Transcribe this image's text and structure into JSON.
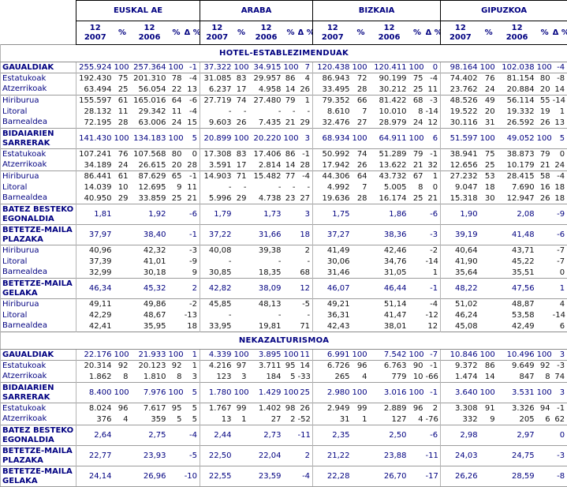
{
  "table": {
    "groups": [
      "EUSKAL AE",
      "ARABA",
      "BIZKAIA",
      "GIPUZKOA"
    ],
    "subheaders": [
      [
        "12",
        "2007"
      ],
      [
        "%"
      ],
      [
        "12",
        "2006"
      ],
      [
        "%"
      ],
      [
        "Δ %"
      ]
    ],
    "colors": {
      "heading_text": "#000080",
      "total_row_text": "#000080",
      "sub_row_text": "#111111",
      "header_border": "#000000",
      "block_line": "#9c9c9c",
      "group_line": "#b5b5b5"
    }
  },
  "sections": [
    {
      "title": "HOTEL-ESTABLEZIMENDUAK",
      "rows": [
        {
          "label": "GAUALDIAK",
          "style": "total",
          "tall": false,
          "block": false,
          "cells": [
            "255.924",
            "100",
            "257.364",
            "100",
            "-1",
            "37.322",
            "100",
            "34.915",
            "100",
            "7",
            "120.438",
            "100",
            "120.411",
            "100",
            "0",
            "98.164",
            "100",
            "102.038",
            "100",
            "-4"
          ]
        },
        {
          "label": "Estatukoak",
          "style": "sub",
          "tall": false,
          "block": true,
          "cells": [
            "192.430",
            "75",
            "201.310",
            "78",
            "-4",
            "31.085",
            "83",
            "29.957",
            "86",
            "4",
            "86.943",
            "72",
            "90.199",
            "75",
            "-4",
            "74.402",
            "76",
            "81.154",
            "80",
            "-8"
          ]
        },
        {
          "label": "Atzerrikoak",
          "style": "sub",
          "tall": false,
          "block": false,
          "cells": [
            "63.494",
            "25",
            "56.054",
            "22",
            "13",
            "6.237",
            "17",
            "4.958",
            "14",
            "26",
            "33.495",
            "28",
            "30.212",
            "25",
            "11",
            "23.762",
            "24",
            "20.884",
            "20",
            "14"
          ]
        },
        {
          "label": "Hiriburua",
          "style": "sub",
          "tall": false,
          "block": true,
          "cells": [
            "155.597",
            "61",
            "165.016",
            "64",
            "-6",
            "27.719",
            "74",
            "27.480",
            "79",
            "1",
            "79.352",
            "66",
            "81.422",
            "68",
            "-3",
            "48.526",
            "49",
            "56.114",
            "55",
            "-14"
          ]
        },
        {
          "label": "Litoral",
          "style": "sub",
          "tall": false,
          "block": false,
          "cells": [
            "28.132",
            "11",
            "29.342",
            "11",
            "-4",
            "-",
            "-",
            "-",
            "-",
            "-",
            "8.610",
            "7",
            "10.010",
            "8",
            "-14",
            "19.522",
            "20",
            "19.332",
            "19",
            "1"
          ]
        },
        {
          "label": "Barnealdea",
          "style": "sub",
          "tall": false,
          "block": false,
          "cells": [
            "72.195",
            "28",
            "63.006",
            "24",
            "15",
            "9.603",
            "26",
            "7.435",
            "21",
            "29",
            "32.476",
            "27",
            "28.979",
            "24",
            "12",
            "30.116",
            "31",
            "26.592",
            "26",
            "13"
          ]
        },
        {
          "label": "BIDAIARIEN\nSARRERAK",
          "style": "total",
          "tall": true,
          "block": true,
          "cells": [
            "141.430",
            "100",
            "134.183",
            "100",
            "5",
            "20.899",
            "100",
            "20.220",
            "100",
            "3",
            "68.934",
            "100",
            "64.911",
            "100",
            "6",
            "51.597",
            "100",
            "49.052",
            "100",
            "5"
          ]
        },
        {
          "label": "Estatukoak",
          "style": "sub",
          "tall": false,
          "block": true,
          "cells": [
            "107.241",
            "76",
            "107.568",
            "80",
            "0",
            "17.308",
            "83",
            "17.406",
            "86",
            "-1",
            "50.992",
            "74",
            "51.289",
            "79",
            "-1",
            "38.941",
            "75",
            "38.873",
            "79",
            "0"
          ]
        },
        {
          "label": "Atzerrikoak",
          "style": "sub",
          "tall": false,
          "block": false,
          "cells": [
            "34.189",
            "24",
            "26.615",
            "20",
            "28",
            "3.591",
            "17",
            "2.814",
            "14",
            "28",
            "17.942",
            "26",
            "13.622",
            "21",
            "32",
            "12.656",
            "25",
            "10.179",
            "21",
            "24"
          ]
        },
        {
          "label": "Hiriburua",
          "style": "sub",
          "tall": false,
          "block": true,
          "cells": [
            "86.441",
            "61",
            "87.629",
            "65",
            "-1",
            "14.903",
            "71",
            "15.482",
            "77",
            "-4",
            "44.306",
            "64",
            "43.732",
            "67",
            "1",
            "27.232",
            "53",
            "28.415",
            "58",
            "-4"
          ]
        },
        {
          "label": "Litoral",
          "style": "sub",
          "tall": false,
          "block": false,
          "cells": [
            "14.039",
            "10",
            "12.695",
            "9",
            "11",
            "-",
            "-",
            "-",
            "-",
            "-",
            "4.992",
            "7",
            "5.005",
            "8",
            "0",
            "9.047",
            "18",
            "7.690",
            "16",
            "18"
          ]
        },
        {
          "label": "Barnealdea",
          "style": "sub",
          "tall": false,
          "block": false,
          "cells": [
            "40.950",
            "29",
            "33.859",
            "25",
            "21",
            "5.996",
            "29",
            "4.738",
            "23",
            "27",
            "19.636",
            "28",
            "16.174",
            "25",
            "21",
            "15.318",
            "30",
            "12.947",
            "26",
            "18"
          ]
        },
        {
          "label": "BATEZ BESTEKO\nEGONALDIA",
          "style": "total",
          "tall": true,
          "block": true,
          "cells": [
            "1,81",
            "",
            "1,92",
            "",
            "-6",
            "1,79",
            "",
            "1,73",
            "",
            "3",
            "1,75",
            "",
            "1,86",
            "",
            "-6",
            "1,90",
            "",
            "2,08",
            "",
            "-9"
          ]
        },
        {
          "label": "BETETZE-MAILA\nPLAZAKA",
          "style": "total",
          "tall": true,
          "block": true,
          "cells": [
            "37,97",
            "",
            "38,40",
            "",
            "-1",
            "37,22",
            "",
            "31,66",
            "",
            "18",
            "37,27",
            "",
            "38,36",
            "",
            "-3",
            "39,19",
            "",
            "41,48",
            "",
            "-6"
          ]
        },
        {
          "label": "Hiriburua",
          "style": "sub",
          "tall": false,
          "block": true,
          "cells": [
            "40,96",
            "",
            "42,32",
            "",
            "-3",
            "40,08",
            "",
            "39,38",
            "",
            "2",
            "41,49",
            "",
            "42,46",
            "",
            "-2",
            "40,64",
            "",
            "43,71",
            "",
            "-7"
          ]
        },
        {
          "label": "Litoral",
          "style": "sub",
          "tall": false,
          "block": false,
          "cells": [
            "37,39",
            "",
            "41,01",
            "",
            "-9",
            "-",
            "",
            "-",
            "",
            "-",
            "30,06",
            "",
            "34,76",
            "",
            "-14",
            "41,90",
            "",
            "45,22",
            "",
            "-7"
          ]
        },
        {
          "label": "Barnealdea",
          "style": "sub",
          "tall": false,
          "block": false,
          "cells": [
            "32,99",
            "",
            "30,18",
            "",
            "9",
            "30,85",
            "",
            "18,35",
            "",
            "68",
            "31,46",
            "",
            "31,05",
            "",
            "1",
            "35,64",
            "",
            "35,51",
            "",
            "0"
          ]
        },
        {
          "label": "BETETZE-MAILA\nGELAKA",
          "style": "total",
          "tall": true,
          "block": true,
          "cells": [
            "46,34",
            "",
            "45,32",
            "",
            "2",
            "42,82",
            "",
            "38,09",
            "",
            "12",
            "46,07",
            "",
            "46,44",
            "",
            "-1",
            "48,22",
            "",
            "47,56",
            "",
            "1"
          ]
        },
        {
          "label": "Hiriburua",
          "style": "sub",
          "tall": false,
          "block": true,
          "cells": [
            "49,11",
            "",
            "49,86",
            "",
            "-2",
            "45,85",
            "",
            "48,13",
            "",
            "-5",
            "49,21",
            "",
            "51,14",
            "",
            "-4",
            "51,02",
            "",
            "48,87",
            "",
            "4"
          ]
        },
        {
          "label": "Litoral",
          "style": "sub",
          "tall": false,
          "block": false,
          "cells": [
            "42,29",
            "",
            "48,67",
            "",
            "-13",
            "-",
            "",
            "-",
            "",
            "-",
            "36,31",
            "",
            "41,47",
            "",
            "-12",
            "46,24",
            "",
            "53,58",
            "",
            "-14"
          ]
        },
        {
          "label": "Barnealdea",
          "style": "sub",
          "tall": false,
          "block": false,
          "cells": [
            "42,41",
            "",
            "35,95",
            "",
            "18",
            "33,95",
            "",
            "19,81",
            "",
            "71",
            "42,43",
            "",
            "38,01",
            "",
            "12",
            "45,08",
            "",
            "42,49",
            "",
            "6"
          ]
        }
      ]
    },
    {
      "title": "NEKAZALTURISMOA",
      "rows": [
        {
          "label": "GAUALDIAK",
          "style": "total",
          "tall": false,
          "block": false,
          "cells": [
            "22.176",
            "100",
            "21.933",
            "100",
            "1",
            "4.339",
            "100",
            "3.895",
            "100",
            "11",
            "6.991",
            "100",
            "7.542",
            "100",
            "-7",
            "10.846",
            "100",
            "10.496",
            "100",
            "3"
          ]
        },
        {
          "label": "Estatukoak",
          "style": "sub",
          "tall": false,
          "block": true,
          "cells": [
            "20.314",
            "92",
            "20.123",
            "92",
            "1",
            "4.216",
            "97",
            "3.711",
            "95",
            "14",
            "6.726",
            "96",
            "6.763",
            "90",
            "-1",
            "9.372",
            "86",
            "9.649",
            "92",
            "-3"
          ]
        },
        {
          "label": "Atzerrikoak",
          "style": "sub",
          "tall": false,
          "block": false,
          "cells": [
            "1.862",
            "8",
            "1.810",
            "8",
            "3",
            "123",
            "3",
            "184",
            "5",
            "-33",
            "265",
            "4",
            "779",
            "10",
            "-66",
            "1.474",
            "14",
            "847",
            "8",
            "74"
          ]
        },
        {
          "label": "BIDAIARIEN\nSARRERAK",
          "style": "total",
          "tall": true,
          "block": true,
          "cells": [
            "8.400",
            "100",
            "7.976",
            "100",
            "5",
            "1.780",
            "100",
            "1.429",
            "100",
            "25",
            "2.980",
            "100",
            "3.016",
            "100",
            "-1",
            "3.640",
            "100",
            "3.531",
            "100",
            "3"
          ]
        },
        {
          "label": "Estatukoak",
          "style": "sub",
          "tall": false,
          "block": true,
          "cells": [
            "8.024",
            "96",
            "7.617",
            "95",
            "5",
            "1.767",
            "99",
            "1.402",
            "98",
            "26",
            "2.949",
            "99",
            "2.889",
            "96",
            "2",
            "3.308",
            "91",
            "3.326",
            "94",
            "-1"
          ]
        },
        {
          "label": "Atzerrikoak",
          "style": "sub",
          "tall": false,
          "block": false,
          "cells": [
            "376",
            "4",
            "359",
            "5",
            "5",
            "13",
            "1",
            "27",
            "2",
            "-52",
            "31",
            "1",
            "127",
            "4",
            "-76",
            "332",
            "9",
            "205",
            "6",
            "62"
          ]
        },
        {
          "label": "BATEZ BESTEKO\nEGONALDIA",
          "style": "total",
          "tall": true,
          "block": true,
          "cells": [
            "2,64",
            "",
            "2,75",
            "",
            "-4",
            "2,44",
            "",
            "2,73",
            "",
            "-11",
            "2,35",
            "",
            "2,50",
            "",
            "-6",
            "2,98",
            "",
            "2,97",
            "",
            "0"
          ]
        },
        {
          "label": "BETETZE-MAILA\nPLAZAKA",
          "style": "total",
          "tall": true,
          "block": true,
          "cells": [
            "22,77",
            "",
            "23,93",
            "",
            "-5",
            "22,50",
            "",
            "22,04",
            "",
            "2",
            "21,22",
            "",
            "23,88",
            "",
            "-11",
            "24,03",
            "",
            "24,75",
            "",
            "-3"
          ]
        },
        {
          "label": "BETETZE-MAILA\nGELAKA",
          "style": "total",
          "tall": true,
          "block": true,
          "cells": [
            "24,14",
            "",
            "26,96",
            "",
            "-10",
            "22,55",
            "",
            "23,59",
            "",
            "-4",
            "22,28",
            "",
            "26,70",
            "",
            "-17",
            "26,26",
            "",
            "28,59",
            "",
            "-8"
          ]
        }
      ]
    }
  ]
}
